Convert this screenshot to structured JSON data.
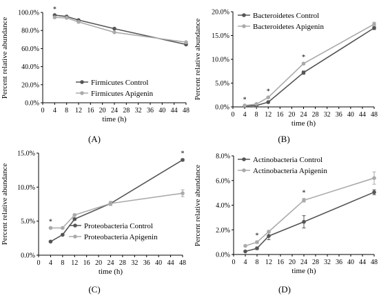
{
  "chart_data": [
    {
      "type": "line",
      "panel": "(A)",
      "xlabel": "time (h)",
      "ylabel": "Percent relative abundance",
      "x": [
        4,
        8,
        12,
        24,
        48
      ],
      "xticks": [
        0,
        4,
        8,
        12,
        16,
        20,
        24,
        28,
        32,
        36,
        40,
        44,
        48
      ],
      "ylim": [
        0,
        100
      ],
      "yticks": [
        "0.0%",
        "20.0%",
        "40.0%",
        "60.0%",
        "80.0%",
        "100.0%"
      ],
      "legend_position": "bottom-left",
      "series": [
        {
          "name": "Firmicutes Control",
          "color": "#555555",
          "values": [
            97,
            95.5,
            91.5,
            82,
            64.5
          ],
          "err": [
            0.5,
            0.5,
            0.5,
            0.5,
            0.5
          ]
        },
        {
          "name": "Firmicutes Apigenin",
          "color": "#aaaaaa",
          "values": [
            94.5,
            94,
            89.5,
            78,
            67
          ],
          "err": [
            0.5,
            0.5,
            0.5,
            0.5,
            0.5
          ]
        }
      ],
      "stars_at": [
        4
      ]
    },
    {
      "type": "line",
      "panel": "(B)",
      "xlabel": "time (h)",
      "ylabel": "Percent relative abundance",
      "x": [
        4,
        8,
        12,
        24,
        48
      ],
      "xticks": [
        0,
        4,
        8,
        12,
        16,
        20,
        24,
        28,
        32,
        36,
        40,
        44,
        48
      ],
      "ylim": [
        0,
        20
      ],
      "yticks": [
        "0.0%",
        "5.0%",
        "10.0%",
        "15.0%",
        "20.0%"
      ],
      "legend_position": "top-left",
      "series": [
        {
          "name": "Bacteroidetes Control",
          "color": "#555555",
          "values": [
            0.2,
            0.3,
            1.0,
            7.2,
            16.6
          ],
          "err": [
            0.05,
            0.05,
            0.1,
            0.35,
            0.35
          ]
        },
        {
          "name": "Bacteroidetes Apigenin",
          "color": "#aaaaaa",
          "values": [
            0.3,
            0.6,
            2.0,
            9.1,
            17.4
          ],
          "err": [
            0.05,
            0.05,
            0.1,
            0.2,
            0.4
          ]
        }
      ],
      "stars_at": [
        4,
        12,
        24
      ]
    },
    {
      "type": "line",
      "panel": "(C)",
      "xlabel": "time (h)",
      "ylabel": "Percent relative abundance",
      "x": [
        4,
        8,
        12,
        24,
        48
      ],
      "xticks": [
        0,
        4,
        8,
        12,
        16,
        20,
        24,
        28,
        32,
        36,
        40,
        44,
        48
      ],
      "ylim": [
        0,
        15
      ],
      "yticks": [
        "0.0%",
        "5.0%",
        "10.0%",
        "15.0%"
      ],
      "legend_position": "bottom-right",
      "series": [
        {
          "name": "Proteobacteria Control",
          "color": "#555555",
          "values": [
            2.0,
            3.0,
            5.3,
            7.6,
            14.0
          ],
          "err": [
            0.1,
            0.1,
            0.15,
            0.3,
            0.15
          ]
        },
        {
          "name": "Proteobacteria Apigenin",
          "color": "#aaaaaa",
          "values": [
            4.0,
            4.0,
            5.9,
            7.6,
            9.1
          ],
          "err": [
            0.1,
            0.1,
            0.15,
            0.3,
            0.5
          ]
        }
      ],
      "stars_at": [
        4,
        48
      ]
    },
    {
      "type": "line",
      "panel": "(D)",
      "xlabel": "time (h)",
      "ylabel": "Percent relative abundance",
      "x": [
        4,
        8,
        12,
        24,
        48
      ],
      "xticks": [
        0,
        4,
        8,
        12,
        16,
        20,
        24,
        28,
        32,
        36,
        40,
        44,
        48
      ],
      "ylim": [
        0,
        8
      ],
      "yticks": [
        "0.0%",
        "2.0%",
        "4.0%",
        "6.0%",
        "8.0%"
      ],
      "legend_position": "top-left",
      "series": [
        {
          "name": "Actinobacteria Control",
          "color": "#555555",
          "values": [
            0.25,
            0.5,
            1.5,
            2.65,
            5.05
          ],
          "err": [
            0.05,
            0.1,
            0.3,
            0.5,
            0.2
          ]
        },
        {
          "name": "Actinobacteria Apigenin",
          "color": "#aaaaaa",
          "values": [
            0.7,
            1.0,
            1.85,
            4.4,
            6.2
          ],
          "err": [
            0.05,
            0.1,
            0.1,
            0.15,
            0.5
          ]
        }
      ],
      "stars_at": [
        8,
        24
      ]
    }
  ]
}
